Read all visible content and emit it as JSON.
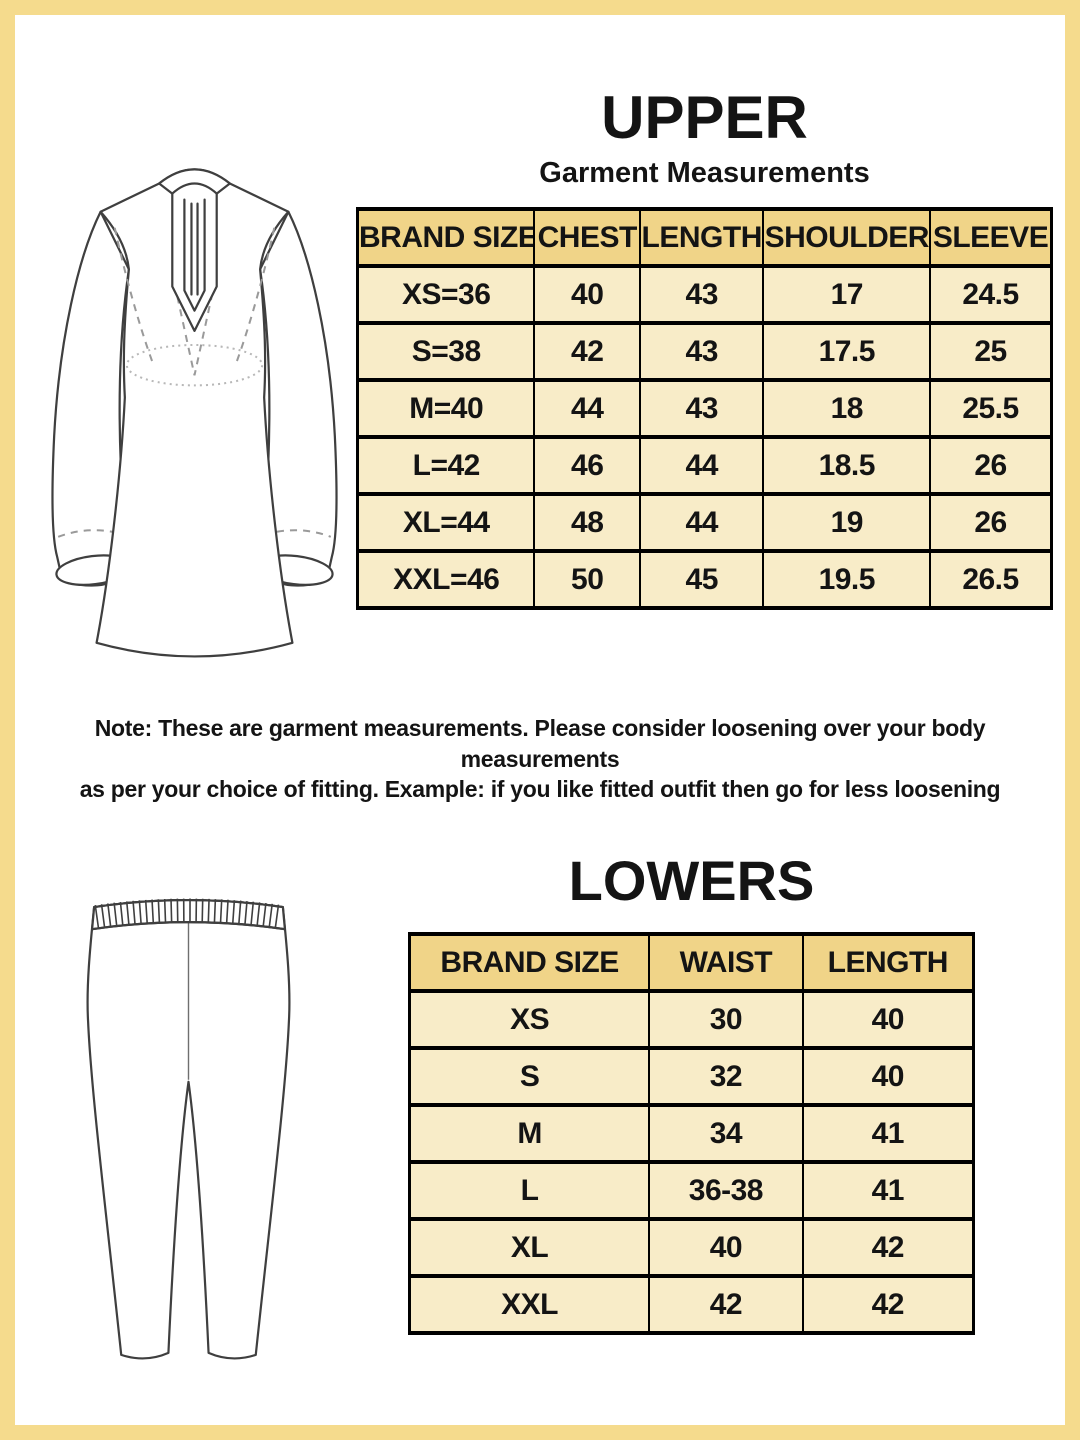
{
  "upper": {
    "title": "UPPER",
    "subtitle": "Garment Measurements",
    "table": {
      "columns": [
        "BRAND SIZE",
        "CHEST",
        "LENGTH",
        "SHOULDER",
        "SLEEVE"
      ],
      "rows": [
        [
          "XS=36",
          "40",
          "43",
          "17",
          "24.5"
        ],
        [
          "S=38",
          "42",
          "43",
          "17.5",
          "25"
        ],
        [
          "M=40",
          "44",
          "43",
          "18",
          "25.5"
        ],
        [
          "L=42",
          "46",
          "44",
          "18.5",
          "26"
        ],
        [
          "XL=44",
          "48",
          "44",
          "19",
          "26"
        ],
        [
          "XXL=46",
          "50",
          "45",
          "19.5",
          "26.5"
        ]
      ]
    },
    "note_line1": "Note: These are garment measurements. Please consider loosening over your body measurements",
    "note_line2": "as per your choice of fitting. Example: if you like fitted outfit then go for less loosening"
  },
  "lowers": {
    "title": "LOWERS",
    "table": {
      "columns": [
        "BRAND SIZE",
        "WAIST",
        "LENGTH"
      ],
      "rows": [
        [
          "XS",
          "30",
          "40"
        ],
        [
          "S",
          "32",
          "40"
        ],
        [
          "M",
          "34",
          "41"
        ],
        [
          "L",
          "36-38",
          "41"
        ],
        [
          "XL",
          "40",
          "42"
        ],
        [
          "XXL",
          "42",
          "42"
        ]
      ]
    }
  },
  "figures": {
    "kurta": "kurta-line-drawing",
    "pants": "leggings-line-drawing"
  },
  "colors": {
    "frame": "#f5db8d",
    "header_bg": "#f0d488",
    "row_bg": "#f8ecc8",
    "table_border": "#000000",
    "text": "#141414"
  }
}
